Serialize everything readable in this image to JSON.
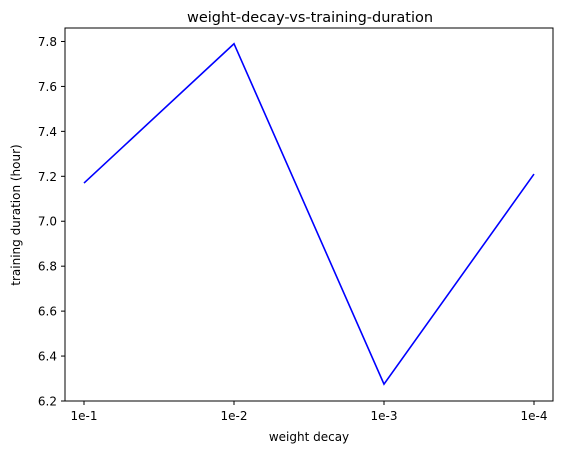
{
  "chart_data": {
    "type": "line",
    "title": "weight-decay-vs-training-duration",
    "xlabel": "weight decay",
    "ylabel": "training duration (hour)",
    "categories": [
      "1e-1",
      "1e-2",
      "1e-3",
      "1e-4"
    ],
    "series": [
      {
        "values": [
          7.17,
          7.79,
          6.275,
          7.21
        ],
        "color": "#0000ff"
      }
    ],
    "ylim": [
      6.2,
      7.86
    ],
    "yticks": [
      6.2,
      6.4,
      6.6,
      6.8,
      7.0,
      7.2,
      7.4,
      7.6,
      7.8
    ],
    "ytick_labels": [
      "6.2",
      "6.4",
      "6.6",
      "6.8",
      "7.0",
      "7.2",
      "7.4",
      "7.6",
      "7.8"
    ],
    "grid": false,
    "legend": "none"
  }
}
